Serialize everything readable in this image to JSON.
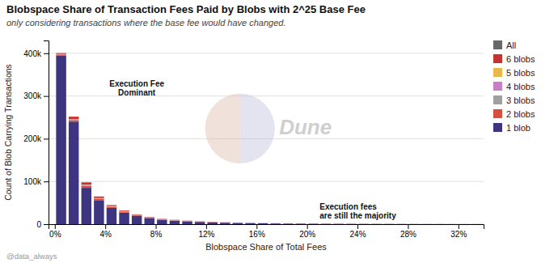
{
  "chart_data": {
    "type": "bar",
    "stacked": true,
    "title": "Blobspace Share of Transaction Fees Paid by Blobs with 2^25 Base Fee",
    "subtitle": "only considering transactions where the base fee would have changed.",
    "xlabel": "Blobspace Share of Total Fees",
    "ylabel": "Count of Blob Carrying Transactions",
    "watermark": "Dune",
    "footer": "@data_always",
    "annotations": [
      {
        "text": "Execution Fee\nDominant",
        "x": 0.065,
        "y": 340000
      },
      {
        "text": "Execution fees\nare still the majority",
        "x": 0.21,
        "y": 52000
      }
    ],
    "x": [
      0.005,
      0.015,
      0.025,
      0.035,
      0.045,
      0.055,
      0.065,
      0.075,
      0.085,
      0.095,
      0.105,
      0.115,
      0.125,
      0.135,
      0.145,
      0.155,
      0.165,
      0.175,
      0.185,
      0.195,
      0.205,
      0.215,
      0.225,
      0.235,
      0.245,
      0.255,
      0.265,
      0.275,
      0.285,
      0.295,
      0.305,
      0.315,
      0.325,
      0.335
    ],
    "series": [
      {
        "name": "1 blob",
        "color": "#3d3580",
        "values": [
          395000,
          240000,
          85000,
          55000,
          38000,
          27000,
          19000,
          14000,
          10000,
          8000,
          6500,
          5200,
          4200,
          3400,
          2800,
          2300,
          1900,
          1600,
          1350,
          1150,
          980,
          820,
          700,
          600,
          510,
          440,
          370,
          310,
          260,
          220,
          185,
          155,
          130,
          110
        ]
      },
      {
        "name": "2 blobs",
        "color": "#d94f3d",
        "values": [
          2000,
          3500,
          5000,
          4000,
          2800,
          2000,
          1600,
          1200,
          950,
          800,
          650,
          560,
          480,
          420,
          370,
          330,
          290,
          260,
          230,
          205,
          182,
          162,
          144,
          128,
          114,
          101,
          90,
          80,
          71,
          63,
          56,
          50,
          44,
          39
        ]
      },
      {
        "name": "3 blobs",
        "color": "#a0a0a0",
        "values": [
          1000,
          1500,
          2000,
          1600,
          1200,
          950,
          780,
          640,
          530,
          445,
          375,
          320,
          275,
          237,
          205,
          178,
          155,
          135,
          118,
          103,
          90,
          79,
          69,
          61,
          53,
          47,
          41,
          36,
          32,
          28,
          24,
          21,
          19,
          16
        ]
      },
      {
        "name": "4 blobs",
        "color": "#c97dc7",
        "values": [
          300,
          450,
          600,
          500,
          420,
          350,
          290,
          240,
          200,
          168,
          141,
          119,
          100,
          85,
          72,
          61,
          52,
          44,
          37,
          32,
          27,
          23,
          20,
          17,
          14,
          12,
          10,
          9,
          7,
          6,
          5,
          4,
          4,
          3
        ]
      },
      {
        "name": "5 blobs",
        "color": "#e8b84b",
        "values": [
          120,
          180,
          230,
          200,
          170,
          142,
          118,
          98,
          82,
          69,
          58,
          49,
          41,
          35,
          29,
          25,
          21,
          18,
          15,
          13,
          11,
          9,
          8,
          7,
          6,
          5,
          4,
          3,
          3,
          2,
          2,
          2,
          1,
          1
        ]
      },
      {
        "name": "6 blobs",
        "color": "#c93030",
        "values": [
          2000,
          6000,
          5000,
          3500,
          2200,
          1600,
          1200,
          950,
          760,
          620,
          510,
          420,
          350,
          290,
          245,
          205,
          172,
          145,
          122,
          103,
          87,
          73,
          62,
          52,
          44,
          37,
          31,
          26,
          22,
          18,
          15,
          13,
          11,
          9
        ]
      },
      {
        "name": "All",
        "color": "#686868",
        "values": [
          null,
          null,
          null,
          null,
          null,
          null,
          null,
          null,
          null,
          null,
          null,
          null,
          null,
          null,
          null,
          null,
          null,
          null,
          null,
          null,
          null,
          null,
          null,
          null,
          null,
          null,
          null,
          null,
          null,
          null,
          null,
          null,
          null,
          null
        ]
      }
    ],
    "xlim": [
      -0.005,
      0.34
    ],
    "ylim": [
      0,
      430000
    ],
    "xticks": [
      {
        "value": 0.0,
        "label": "0%"
      },
      {
        "value": 0.04,
        "label": "4%"
      },
      {
        "value": 0.08,
        "label": "8%"
      },
      {
        "value": 0.12,
        "label": "12%"
      },
      {
        "value": 0.16,
        "label": "16%"
      },
      {
        "value": 0.2,
        "label": "20%"
      },
      {
        "value": 0.24,
        "label": "24%"
      },
      {
        "value": 0.28,
        "label": "28%"
      },
      {
        "value": 0.32,
        "label": "32%"
      }
    ],
    "yticks": [
      0,
      {
        "value": 100000,
        "label": "100k"
      },
      {
        "value": 200000,
        "label": "200k"
      },
      {
        "value": 300000,
        "label": "300k"
      },
      {
        "value": 400000,
        "label": "400k"
      }
    ],
    "grid": true,
    "legend": "right"
  }
}
